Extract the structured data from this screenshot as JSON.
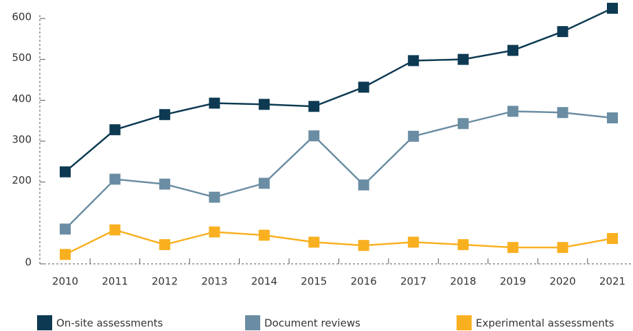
{
  "chart_data": {
    "type": "line",
    "categories": [
      "2010",
      "2011",
      "2012",
      "2013",
      "2014",
      "2015",
      "2016",
      "2017",
      "2018",
      "2019",
      "2020",
      "2021"
    ],
    "series": [
      {
        "name": "On-site assessments",
        "color": "#0d3a52",
        "values": [
          225,
          328,
          365,
          393,
          390,
          385,
          432,
          497,
          500,
          522,
          568,
          625
        ]
      },
      {
        "name": "Document reviews",
        "color": "#6a8da3",
        "values": [
          85,
          207,
          195,
          163,
          197,
          313,
          193,
          312,
          343,
          373,
          370,
          357
        ]
      },
      {
        "name": "Experimental assessments",
        "color": "#f9b020",
        "values": [
          23,
          83,
          47,
          78,
          70,
          53,
          45,
          53,
          47,
          40,
          40,
          62
        ]
      }
    ],
    "ylim": [
      0,
      600
    ],
    "yticks": [
      0,
      200,
      300,
      400,
      500,
      600
    ],
    "legend": "bottom"
  }
}
